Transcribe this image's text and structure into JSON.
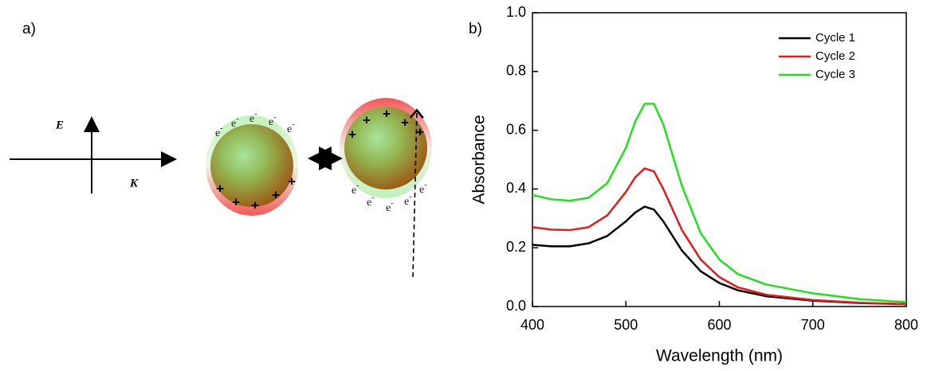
{
  "panels": {
    "a": "a)",
    "b": "b)"
  },
  "diagram": {
    "field_label": "E",
    "wave_label": "K",
    "electron": {
      "base": "e",
      "sup": "-"
    },
    "positive_charge": "+"
  },
  "chart_data": {
    "type": "line",
    "x_label": "Wavelength (nm)",
    "y_label": "Absorbance",
    "x": [
      400,
      420,
      440,
      460,
      480,
      500,
      510,
      520,
      530,
      540,
      560,
      580,
      600,
      620,
      650,
      700,
      750,
      800
    ],
    "series": [
      {
        "name": "Cycle 1",
        "color": "#000000",
        "values": [
          0.21,
          0.205,
          0.205,
          0.215,
          0.24,
          0.29,
          0.32,
          0.34,
          0.33,
          0.29,
          0.19,
          0.12,
          0.08,
          0.055,
          0.035,
          0.02,
          0.012,
          0.008
        ]
      },
      {
        "name": "Cycle 2",
        "color": "#e41a1c",
        "values": [
          0.27,
          0.262,
          0.26,
          0.27,
          0.31,
          0.39,
          0.44,
          0.47,
          0.46,
          0.4,
          0.26,
          0.16,
          0.1,
          0.065,
          0.04,
          0.022,
          0.013,
          0.008
        ]
      },
      {
        "name": "Cycle 3",
        "color": "#22e01e",
        "values": [
          0.38,
          0.365,
          0.36,
          0.37,
          0.42,
          0.54,
          0.63,
          0.69,
          0.69,
          0.62,
          0.41,
          0.25,
          0.16,
          0.11,
          0.075,
          0.045,
          0.025,
          0.015
        ]
      }
    ],
    "xlim": [
      400,
      800
    ],
    "xticks": [
      400,
      500,
      600,
      700,
      800
    ],
    "ylim": [
      0,
      1
    ],
    "yticks": [
      {
        "value": 0,
        "label": "0.0"
      },
      0.2,
      0.4,
      0.6,
      0.8,
      {
        "value": 1,
        "label": "1.0"
      }
    ],
    "legend": "upper-right"
  }
}
